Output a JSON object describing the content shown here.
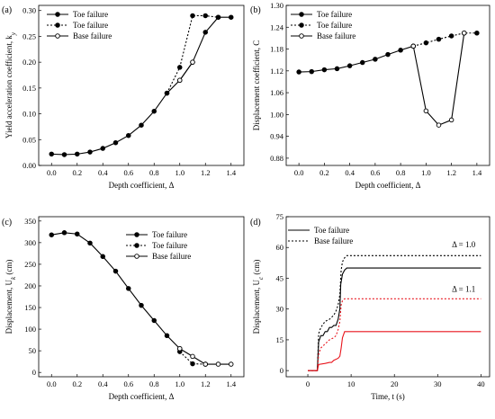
{
  "chart_data": [
    {
      "type": "line",
      "panel_label": "(a)",
      "xlabel": "Depth coefficient, Δ",
      "ylabel": "Yield acceleration coefficient, k",
      "ylabel_sub": "y",
      "xlim": [
        -0.1,
        1.5
      ],
      "ylim": [
        0.0,
        0.31
      ],
      "xticks": [
        "0.0",
        "0.2",
        "0.4",
        "0.6",
        "0.8",
        "1.0",
        "1.2",
        "1.4"
      ],
      "yticks": [
        "0.00",
        "0.05",
        "0.10",
        "0.15",
        "0.20",
        "0.25",
        "0.30"
      ],
      "xtick_values": [
        0,
        0.2,
        0.4,
        0.6,
        0.8,
        1.0,
        1.2,
        1.4
      ],
      "ytick_values": [
        0,
        0.05,
        0.1,
        0.15,
        0.2,
        0.25,
        0.3
      ],
      "legend": [
        "Toe failure",
        "Toe failure",
        "Base failure"
      ],
      "series": [
        {
          "name": "Toe failure",
          "style": "solid",
          "marker": "filled",
          "x": [
            0,
            0.1,
            0.2,
            0.3,
            0.4,
            0.5,
            0.6,
            0.7,
            0.8,
            0.9,
            1.0,
            1.1,
            1.2,
            1.3,
            1.4
          ],
          "y": [
            0.022,
            0.021,
            0.022,
            0.026,
            0.033,
            0.044,
            0.058,
            0.078,
            0.105,
            0.14,
            0.165,
            0.2,
            0.258,
            0.287,
            0.287
          ]
        },
        {
          "name": "Toe failure",
          "style": "dotted",
          "marker": "filled",
          "x": [
            0.9,
            1.0,
            1.1,
            1.2,
            1.3
          ],
          "y": [
            0.14,
            0.19,
            0.29,
            0.29,
            0.287
          ]
        },
        {
          "name": "Base failure",
          "style": "solid",
          "marker": "open",
          "x": [
            1.0,
            1.1
          ],
          "y": [
            0.165,
            0.2
          ]
        }
      ]
    },
    {
      "type": "line",
      "panel_label": "(b)",
      "xlabel": "Depth coefficient, Δ",
      "ylabel": "Displacement coefficient, C",
      "ylabel_sub": "",
      "xlim": [
        -0.1,
        1.5
      ],
      "ylim": [
        0.86,
        1.3
      ],
      "xticks": [
        "0.0",
        "0.2",
        "0.4",
        "0.6",
        "0.8",
        "1.0",
        "1.2",
        "1.4"
      ],
      "yticks": [
        "0.88",
        "0.94",
        "1.00",
        "1.06",
        "1.12",
        "1.18",
        "1.24",
        "1.30"
      ],
      "xtick_values": [
        0,
        0.2,
        0.4,
        0.6,
        0.8,
        1.0,
        1.2,
        1.4
      ],
      "ytick_values": [
        0.88,
        0.94,
        1.0,
        1.06,
        1.12,
        1.18,
        1.24,
        1.3
      ],
      "legend": [
        "Toe failure",
        "Toe failure",
        "Base failure"
      ],
      "series": [
        {
          "name": "Toe failure",
          "style": "solid",
          "marker": "filled",
          "x": [
            0,
            0.1,
            0.2,
            0.3,
            0.4,
            0.5,
            0.6,
            0.7,
            0.8,
            0.9
          ],
          "y": [
            1.117,
            1.118,
            1.123,
            1.126,
            1.134,
            1.143,
            1.152,
            1.165,
            1.177,
            1.188
          ]
        },
        {
          "name": "Toe failure",
          "style": "dotted",
          "marker": "filled",
          "x": [
            0.9,
            1.0,
            1.1,
            1.2,
            1.3,
            1.4
          ],
          "y": [
            1.188,
            1.197,
            1.207,
            1.216,
            1.224,
            1.224
          ]
        },
        {
          "name": "Base failure",
          "style": "solid",
          "marker": "open",
          "x": [
            0.9,
            1.0,
            1.1,
            1.2,
            1.3
          ],
          "y": [
            1.188,
            1.01,
            0.971,
            0.985,
            1.224
          ]
        }
      ]
    },
    {
      "type": "line",
      "panel_label": "(c)",
      "xlabel": "Depth coefficient, Δ",
      "ylabel": "Displacement, U",
      "ylabel_sub": "k",
      "ylabel_suffix": " (cm)",
      "xlim": [
        -0.1,
        1.5
      ],
      "ylim": [
        -10,
        360
      ],
      "xticks": [
        "0.0",
        "0.2",
        "0.4",
        "0.6",
        "0.8",
        "1.0",
        "1.2",
        "1.4"
      ],
      "yticks": [
        "0",
        "50",
        "100",
        "150",
        "200",
        "250",
        "300",
        "350"
      ],
      "xtick_values": [
        0,
        0.2,
        0.4,
        0.6,
        0.8,
        1.0,
        1.2,
        1.4
      ],
      "ytick_values": [
        0,
        50,
        100,
        150,
        200,
        250,
        300,
        350
      ],
      "legend": [
        "Toe failure",
        "Toe failure",
        "Base failure"
      ],
      "series": [
        {
          "name": "Toe failure",
          "style": "solid",
          "marker": "filled",
          "x": [
            0,
            0.1,
            0.2,
            0.3,
            0.4,
            0.5,
            0.6,
            0.7,
            0.8,
            0.9,
            1.0
          ],
          "y": [
            318,
            323,
            320,
            299,
            268,
            234,
            194,
            155,
            120,
            85,
            55
          ]
        },
        {
          "name": "Toe failure",
          "style": "dotted",
          "marker": "filled",
          "x": [
            1.0,
            1.1,
            1.2
          ],
          "y": [
            48,
            20,
            19
          ]
        },
        {
          "name": "Base failure",
          "style": "solid",
          "marker": "open",
          "x": [
            1.0,
            1.1,
            1.2,
            1.3,
            1.4
          ],
          "y": [
            55,
            37,
            19,
            19,
            19
          ]
        }
      ]
    },
    {
      "type": "line",
      "panel_label": "(d)",
      "xlabel": "Time, t (s)",
      "ylabel": "Displacement, U",
      "ylabel_sub": "c",
      "ylabel_suffix": " (cm)",
      "xlim": [
        -5,
        42
      ],
      "ylim": [
        -3,
        75
      ],
      "xticks": [
        "0",
        "10",
        "20",
        "30",
        "40"
      ],
      "yticks": [
        "0",
        "15",
        "30",
        "45",
        "60",
        "75"
      ],
      "xtick_values": [
        0,
        10,
        20,
        30,
        40
      ],
      "ytick_values": [
        0,
        15,
        30,
        45,
        60,
        75
      ],
      "legend": [
        "Toe failure",
        "Base failure"
      ],
      "annotations": [
        {
          "text": "Δ = 1.0",
          "x": 36,
          "y": 60,
          "color": "#000000"
        },
        {
          "text": "Δ = 1.1",
          "x": 36,
          "y": 38.5,
          "color": "#e8141c"
        }
      ],
      "series": [
        {
          "name": "Toe failure",
          "style": "solid",
          "color": "#000000",
          "group": "Δ = 1.0",
          "x": [
            0,
            2.2,
            2.5,
            3,
            3.5,
            4,
            4.5,
            5,
            5.5,
            6,
            6.5,
            7,
            7.4,
            7.6,
            8,
            8.5,
            9,
            9.5,
            40
          ],
          "y": [
            0,
            0,
            14,
            17,
            17,
            19,
            19,
            21,
            21,
            22,
            22,
            25,
            30,
            42,
            47,
            49,
            50,
            50,
            50
          ]
        },
        {
          "name": "Base failure",
          "style": "dotted",
          "color": "#000000",
          "group": "Δ = 1.0",
          "x": [
            0,
            2.2,
            2.5,
            3,
            4,
            5,
            6,
            6.5,
            7,
            7.4,
            7.7,
            8,
            8.5,
            9,
            40
          ],
          "y": [
            0,
            0,
            18,
            21,
            24,
            25,
            27,
            29,
            32,
            37,
            49,
            53,
            55,
            56,
            56
          ]
        },
        {
          "name": "Toe failure",
          "style": "solid",
          "color": "#e8141c",
          "group": "Δ = 1.1",
          "x": [
            0,
            2.2,
            2.5,
            4,
            5,
            5.5,
            6,
            7,
            7.4,
            7.7,
            8,
            8.5,
            40
          ],
          "y": [
            0,
            0,
            3,
            3.5,
            4,
            4,
            5,
            6,
            7,
            11,
            16,
            19,
            19
          ]
        },
        {
          "name": "Base failure",
          "style": "dotted",
          "color": "#e8141c",
          "group": "Δ = 1.1",
          "x": [
            0,
            2.2,
            2.5,
            3,
            4,
            5,
            6,
            6.5,
            7,
            7.4,
            7.7,
            8,
            8.5,
            40
          ],
          "y": [
            0,
            0,
            8,
            11,
            13,
            15,
            16,
            17,
            20,
            24,
            32,
            34,
            35,
            35
          ]
        }
      ]
    }
  ]
}
